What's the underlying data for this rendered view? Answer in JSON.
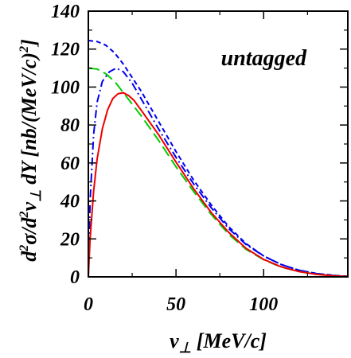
{
  "chart_data": {
    "type": "line",
    "annotation": "untagged",
    "xlabel": {
      "main": "v",
      "sub": "⊥",
      "unit": " [MeV/c]"
    },
    "ylabel": {
      "p1": "d",
      "s1": "2",
      "p2": "σ/d",
      "s2": "2",
      "p3": "v",
      "sub": "⊥",
      "p4": " dY [nb/(MeV/c)",
      "s3": "2",
      "p5": "]"
    },
    "xlim": [
      0,
      148
    ],
    "ylim": [
      0,
      140
    ],
    "xticks": [
      0,
      50,
      100
    ],
    "yticks": [
      0,
      20,
      40,
      60,
      80,
      100,
      120,
      140
    ],
    "grid": false,
    "series": [
      {
        "style": "dashed-short",
        "color": "#0000ee",
        "x": [
          0,
          5,
          10,
          15,
          20,
          30,
          40,
          50,
          60,
          70,
          80,
          90,
          100,
          110,
          120,
          130,
          140,
          148
        ],
        "y": [
          124.5,
          124,
          122,
          118,
          112,
          98,
          82,
          66,
          51,
          38,
          26.5,
          17.5,
          11,
          6.5,
          3.5,
          1.8,
          0.8,
          0.3
        ]
      },
      {
        "style": "dashed-dot",
        "color": "#0000ee",
        "x": [
          0,
          1,
          3,
          5,
          8,
          12,
          16,
          20,
          25,
          30,
          40,
          50,
          60,
          70,
          80,
          90,
          100,
          110,
          120,
          130,
          140,
          148
        ],
        "y": [
          0,
          40,
          75,
          92,
          103,
          108,
          110,
          108,
          102,
          94,
          78,
          63,
          49,
          36.5,
          25.5,
          17,
          11,
          6.5,
          3.5,
          1.7,
          0.7,
          0.3
        ]
      },
      {
        "style": "dashed-long",
        "color": "#00cc00",
        "x": [
          0,
          5,
          10,
          15,
          20,
          30,
          40,
          50,
          60,
          70,
          80,
          90,
          100,
          110,
          120,
          130,
          140,
          148
        ],
        "y": [
          110,
          109.5,
          107,
          103,
          97,
          85,
          72,
          58,
          45,
          33,
          22.5,
          14.5,
          9,
          5.2,
          2.8,
          1.4,
          0.6,
          0.2
        ]
      },
      {
        "style": "solid",
        "color": "#ee0000",
        "x": [
          0,
          1,
          3,
          5,
          8,
          11,
          14,
          17,
          20,
          23,
          26,
          30,
          40,
          50,
          60,
          70,
          80,
          90,
          100,
          110,
          120,
          130,
          140,
          148
        ],
        "y": [
          0,
          20,
          45,
          62,
          78,
          88,
          94,
          96.5,
          97,
          95.5,
          93,
          88,
          75,
          60.5,
          46.5,
          34,
          23.5,
          15,
          9.2,
          5.3,
          2.8,
          1.3,
          0.5,
          0.2
        ]
      }
    ]
  }
}
